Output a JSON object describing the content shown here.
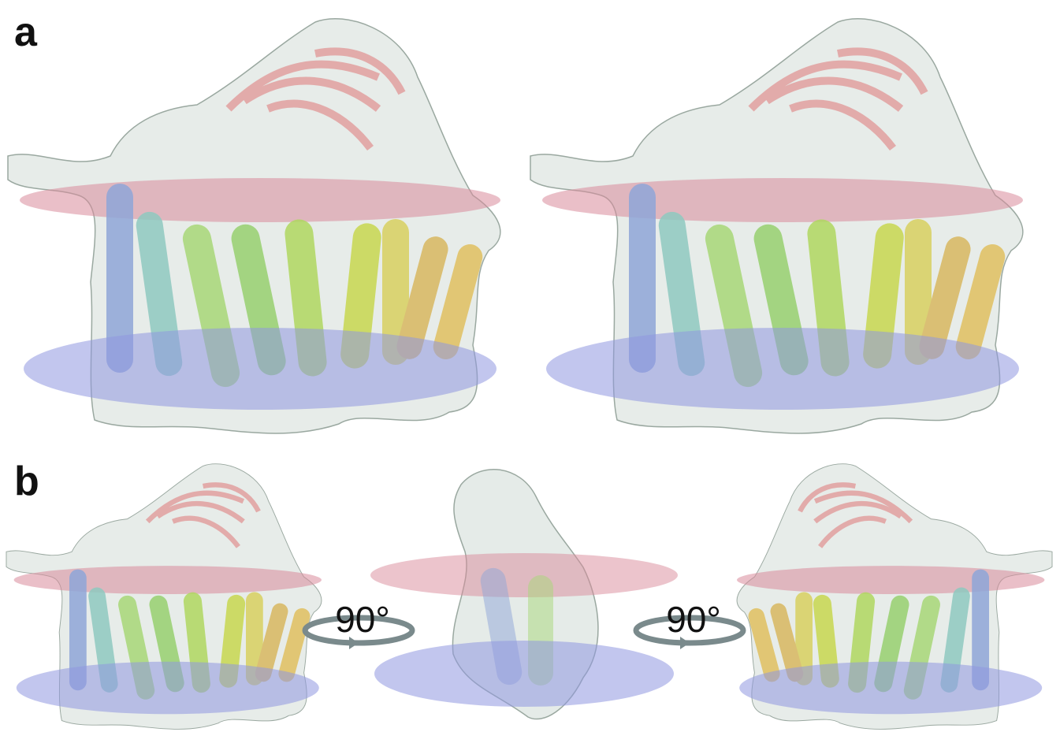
{
  "panels": [
    {
      "label": "a"
    },
    {
      "label": "b",
      "rotations": [
        "90°",
        "90°"
      ]
    }
  ]
}
